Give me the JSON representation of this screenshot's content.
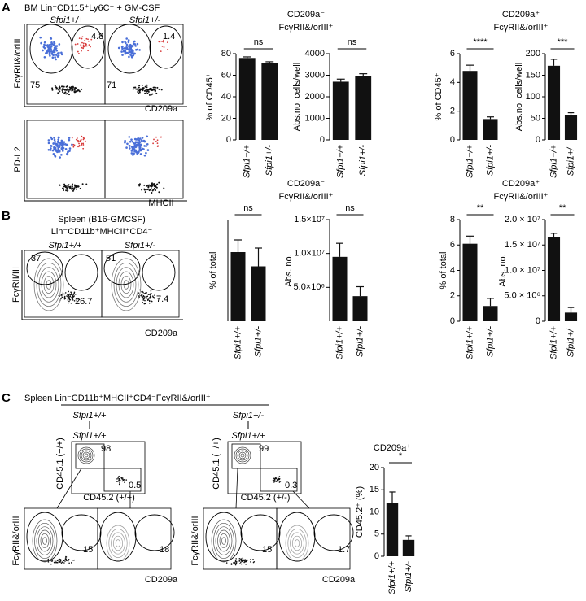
{
  "figure": {
    "A": {
      "label": "A",
      "header": "BM Lin⁻CD115⁺Ly6C⁺ + GM-CSF",
      "genotypes": [
        "Sfpi1+/+",
        "Sfpi1+/-"
      ],
      "gates": [
        "4.8",
        "75",
        "1.4",
        "71"
      ],
      "axes": [
        "FcγRII&/orIII",
        "CD209a",
        "PD-L2",
        "MHCII"
      ],
      "group_titles": [
        [
          "CD209a⁻",
          "FcγRII&/orIII⁺"
        ],
        [
          "CD209a⁺",
          "FcγRII&/orIII⁺"
        ]
      ]
    },
    "B": {
      "label": "B",
      "header": [
        "Spleen (B16-GMCSF)",
        "Lin⁻CD11b⁺MHCII⁺CD4⁻"
      ],
      "genotypes": [
        "Sfpi1+/+",
        "Sfpi1+/-"
      ],
      "gates": [
        "37",
        "26.7",
        "51",
        "7.4"
      ],
      "axes": [
        "FcγRII/III",
        "CD209a"
      ],
      "group_titles": [
        [
          "CD209a⁻",
          "FcγRII&/orIII⁺"
        ],
        [
          "CD209a⁺",
          "FcγRII&/orIII⁺"
        ]
      ]
    },
    "C": {
      "label": "C",
      "header": "Spleen Lin⁻CD11b⁺MHCII⁺CD4⁻FcγRII&/orIII⁺",
      "donors": [
        "Sfpi1+/+",
        "Sfpi1+/-"
      ],
      "recipients": [
        "Sfpi1+/+",
        "Sfpi1+/+"
      ],
      "gates": [
        "98",
        "0.5",
        "99",
        "0.3",
        "15",
        "18",
        "15",
        "1.7"
      ],
      "axes": [
        "CD45.1 (+/+)",
        "CD45.2 (+/+)",
        "CD45.2 (+/-)",
        "FcγRII&/orIII",
        "CD209a"
      ]
    }
  },
  "chart_data": [
    {
      "type": "bar",
      "ylabel": "% of CD45⁺",
      "categories": [
        "Sfpi1+/+",
        "Sfpi1+/-"
      ],
      "values": [
        76,
        71
      ],
      "errors": [
        1,
        1.5
      ],
      "color": "#111111",
      "ylim": [
        0,
        80
      ],
      "yticks": [
        0,
        20,
        40,
        60,
        80
      ],
      "significance": "ns"
    },
    {
      "type": "bar",
      "ylabel": "Abs.no. cells/well",
      "categories": [
        "Sfpi1+/+",
        "Sfpi1+/-"
      ],
      "values": [
        2700,
        2950
      ],
      "errors": [
        120,
        120
      ],
      "color": "#111111",
      "ylim": [
        0,
        4000
      ],
      "yticks": [
        0,
        1000,
        2000,
        3000,
        4000
      ],
      "significance": "ns"
    },
    {
      "type": "bar",
      "ylabel": "% of CD45⁺",
      "categories": [
        "Sfpi1+/+",
        "Sfpi1+/-"
      ],
      "values": [
        4.8,
        1.45
      ],
      "errors": [
        0.4,
        0.15
      ],
      "color": "#111111",
      "ylim": [
        0,
        6
      ],
      "yticks": [
        0,
        2,
        4,
        6
      ],
      "significance": "****"
    },
    {
      "type": "bar",
      "ylabel": "Abs.no. cells/well",
      "categories": [
        "Sfpi1+/+",
        "Sfpi1+/-"
      ],
      "values": [
        172,
        57
      ],
      "errors": [
        15,
        6
      ],
      "color": "#111111",
      "ylim": [
        0,
        200
      ],
      "yticks": [
        0,
        50,
        100,
        150,
        200
      ],
      "significance": "***"
    },
    {
      "type": "bar",
      "ylabel": "% of total",
      "categories": [
        "Sfpi1+/+",
        "Sfpi1+/-"
      ],
      "values": [
        3.4,
        2.7
      ],
      "errors": [
        0.6,
        0.9
      ],
      "color": "#111111",
      "ylim": [
        0,
        5
      ],
      "significance": "ns"
    },
    {
      "type": "bar",
      "ylabel": "Abs. no.",
      "categories": [
        "Sfpi1+/+",
        "Sfpi1+/-"
      ],
      "values": [
        9500000,
        3700000
      ],
      "errors": [
        2000000,
        1400000
      ],
      "color": "#111111",
      "ylim": [
        0,
        15000000
      ],
      "yticks": [
        {
          "value": 5000000,
          "label": "5.0×10⁶"
        },
        {
          "value": 10000000,
          "label": "1.0×10⁷"
        },
        {
          "value": 15000000,
          "label": "1.5×10⁷"
        }
      ],
      "significance": "ns"
    },
    {
      "type": "bar",
      "ylabel": "% of total",
      "categories": [
        "Sfpi1+/+",
        "Sfpi1+/-"
      ],
      "values": [
        6.1,
        1.2
      ],
      "errors": [
        0.6,
        0.6
      ],
      "color": "#111111",
      "ylim": [
        0,
        8
      ],
      "yticks": [
        0,
        2,
        4,
        6,
        8
      ],
      "significance": "**"
    },
    {
      "type": "bar",
      "ylabel": "Abs. no.",
      "categories": [
        "Sfpi1+/+",
        "Sfpi1+/-"
      ],
      "values": [
        16500000,
        1700000
      ],
      "errors": [
        800000,
        1000000
      ],
      "color": "#111111",
      "ylim": [
        0,
        20000000
      ],
      "yticks": [
        0,
        {
          "value": 5000000,
          "label": "5.0 × 10⁶"
        },
        {
          "value": 10000000,
          "label": "1.0 × 10⁷"
        },
        {
          "value": 15000000,
          "label": "1.5 × 10⁷"
        },
        {
          "value": 20000000,
          "label": "2.0 × 10⁷"
        }
      ],
      "significance": "**"
    },
    {
      "type": "bar",
      "title": "CD209a⁺",
      "ylabel": "CD45.2⁺ (%)",
      "categories": [
        "Sfpi1+/+",
        "Sfpi1+/-"
      ],
      "values": [
        12,
        3.7
      ],
      "errors": [
        2.5,
        0.9
      ],
      "color": "#111111",
      "ylim": [
        0,
        20
      ],
      "yticks": [
        0,
        5,
        10,
        15,
        20
      ],
      "significance": "*"
    }
  ]
}
